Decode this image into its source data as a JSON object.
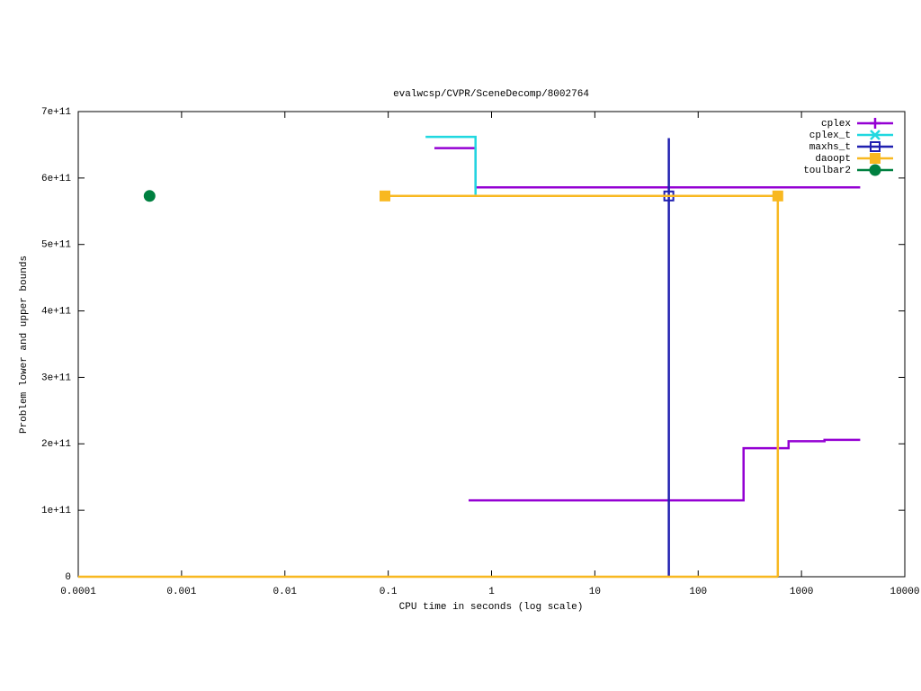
{
  "chart_data": {
    "type": "line",
    "title": "evalwcsp/CVPR/SceneDecomp/8002764",
    "x_label": "CPU time in seconds (log scale)",
    "y_label": "Problem lower and upper bounds",
    "x_log": true,
    "xlim": [
      0.0001,
      10000
    ],
    "xticks": [
      0.0001,
      0.001,
      0.01,
      0.1,
      1,
      10,
      100,
      1000,
      10000
    ],
    "ylim": [
      0,
      700000000000
    ],
    "yticks": [
      0,
      {
        "value": 100000000000,
        "label": "1e+11"
      },
      {
        "value": 200000000000,
        "label": "2e+11"
      },
      {
        "value": 300000000000,
        "label": "3e+11"
      },
      {
        "value": 400000000000,
        "label": "4e+11"
      },
      {
        "value": 500000000000,
        "label": "5e+11"
      },
      {
        "value": 600000000000,
        "label": "6e+11"
      },
      {
        "value": 700000000000,
        "label": "7e+11"
      }
    ],
    "legend": "top-right",
    "series": [
      {
        "name": "cplex",
        "color": "#9400d3",
        "marker": "plus",
        "x": [
          0.28,
          0.7,
          0.7,
          3700,
          null,
          0.6,
          275,
          275,
          750,
          750,
          1670,
          1670,
          3700
        ],
        "y": [
          645000000000,
          645000000000,
          586000000000,
          586000000000,
          null,
          115000000000,
          115000000000,
          193500000000,
          193500000000,
          204000000000,
          204000000000,
          206000000000,
          206000000000
        ]
      },
      {
        "name": "cplex_t",
        "color": "#20d8e0",
        "marker": "cross",
        "x": [
          0.23,
          0.7,
          0.7
        ],
        "y": [
          662000000000,
          662000000000,
          575000000000
        ]
      },
      {
        "name": "maxhs_t",
        "color": "#2020b0",
        "marker": "open-square",
        "x": [
          52,
          52
        ],
        "y": [
          0,
          660000000000
        ],
        "marker_x": [
          52
        ],
        "marker_y": [
          573000000000
        ]
      },
      {
        "name": "daoopt",
        "color": "#f8b820",
        "marker": "square",
        "x": [
          0.093,
          590,
          590,
          null,
          0.0001,
          590
        ],
        "y": [
          573000000000,
          573000000000,
          0,
          null,
          0,
          0
        ],
        "marker_x": [
          0.093,
          590
        ],
        "marker_y": [
          573000000000,
          573000000000
        ]
      },
      {
        "name": "toulbar2",
        "color": "#008040",
        "marker": "circle",
        "marker_x": [
          0.00049
        ],
        "marker_y": [
          573000000000
        ]
      }
    ]
  }
}
